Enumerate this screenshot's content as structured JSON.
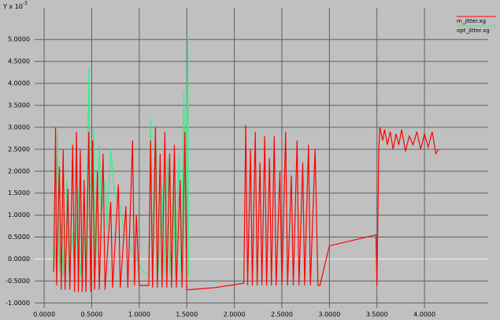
{
  "chart_data": {
    "type": "line",
    "y_label": "Y x 10",
    "y_label_exponent": "-3",
    "xlim": [
      -0.1,
      4.67
    ],
    "ylim": [
      -1.12,
      5.72
    ],
    "xticks": [
      {
        "value": 0,
        "label": "0.0000"
      },
      {
        "value": 0.5,
        "label": "0.5000"
      },
      {
        "value": 1,
        "label": "1.0000"
      },
      {
        "value": 1.5,
        "label": "1.5000"
      },
      {
        "value": 2,
        "label": "2.0000"
      },
      {
        "value": 2.5,
        "label": "2.5000"
      },
      {
        "value": 3,
        "label": "3.0000"
      },
      {
        "value": 3.5,
        "label": "3.5000"
      },
      {
        "value": 4,
        "label": "4.0000"
      }
    ],
    "yticks": [
      {
        "value": -1,
        "label": "-1.0000"
      },
      {
        "value": -0.5,
        "label": "-0.5000"
      },
      {
        "value": 0,
        "label": "0.0000"
      },
      {
        "value": 0.5,
        "label": "0.5000"
      },
      {
        "value": 1,
        "label": "1.0000"
      },
      {
        "value": 1.5,
        "label": "1.5000"
      },
      {
        "value": 2,
        "label": "2.0000"
      },
      {
        "value": 2.5,
        "label": "2.5000"
      },
      {
        "value": 3,
        "label": "3.0000"
      },
      {
        "value": 3.5,
        "label": "3.5000"
      },
      {
        "value": 4,
        "label": "4.0000"
      },
      {
        "value": 4.5,
        "label": "4.5000"
      },
      {
        "value": 5,
        "label": "5.0000"
      }
    ],
    "grid": true,
    "legend": "top-right",
    "series": [
      {
        "name": "m_jitter.xg",
        "color": "#ff0000",
        "x": [
          0.1,
          0.12,
          0.13,
          0.16,
          0.18,
          0.2,
          0.22,
          0.25,
          0.27,
          0.3,
          0.32,
          0.34,
          0.36,
          0.38,
          0.4,
          0.42,
          0.44,
          0.47,
          0.49,
          0.51,
          0.53,
          0.56,
          0.58,
          0.62,
          0.64,
          0.7,
          0.72,
          0.78,
          0.8,
          0.86,
          0.88,
          0.93,
          0.95,
          0.97,
          1.0,
          1.1,
          1.12,
          1.14,
          1.17,
          1.19,
          1.22,
          1.24,
          1.27,
          1.29,
          1.32,
          1.34,
          1.37,
          1.39,
          1.43,
          1.45,
          1.48,
          1.5,
          1.52,
          1.8,
          2.1,
          2.12,
          2.14,
          2.17,
          2.19,
          2.22,
          2.24,
          2.27,
          2.29,
          2.32,
          2.34,
          2.37,
          2.39,
          2.42,
          2.44,
          2.48,
          2.5,
          2.54,
          2.56,
          2.6,
          2.62,
          2.66,
          2.68,
          2.72,
          2.74,
          2.78,
          2.8,
          2.85,
          2.88,
          2.9,
          3.0,
          3.49,
          3.5,
          3.52,
          3.53,
          3.56,
          3.58,
          3.61,
          3.64,
          3.67,
          3.7,
          3.73,
          3.76,
          3.8,
          3.84,
          3.88,
          3.92,
          3.96,
          4.0,
          4.04,
          4.08,
          4.12,
          4.15
        ],
        "values": [
          -0.3,
          3.0,
          -0.6,
          2.1,
          -0.7,
          2.5,
          -0.7,
          1.6,
          -0.7,
          2.6,
          -0.75,
          2.9,
          -0.75,
          2.5,
          -0.75,
          1.8,
          -0.75,
          2.9,
          -0.75,
          2.7,
          -0.7,
          2.0,
          -0.7,
          2.4,
          -0.7,
          1.3,
          -0.65,
          1.7,
          -0.65,
          1.2,
          -0.65,
          2.7,
          -0.6,
          1.0,
          -0.6,
          -0.6,
          2.7,
          -0.65,
          3.0,
          -0.65,
          2.4,
          -0.65,
          2.9,
          -0.65,
          2.4,
          -0.65,
          2.6,
          -0.65,
          1.8,
          -0.65,
          2.9,
          -0.7,
          -0.7,
          -0.65,
          -0.55,
          3.05,
          -0.6,
          2.5,
          -0.6,
          2.9,
          -0.6,
          2.2,
          -0.6,
          2.8,
          -0.6,
          2.3,
          -0.6,
          2.8,
          -0.6,
          2.0,
          -0.6,
          2.9,
          -0.6,
          1.9,
          -0.6,
          2.7,
          -0.6,
          2.2,
          -0.6,
          2.6,
          -0.6,
          2.5,
          -0.6,
          -0.6,
          0.3,
          0.55,
          -0.6,
          2.5,
          3.0,
          2.7,
          2.95,
          2.6,
          2.9,
          2.5,
          2.85,
          2.6,
          2.95,
          2.45,
          2.8,
          2.6,
          2.9,
          2.5,
          2.85,
          2.55,
          2.9,
          2.4,
          2.5
        ]
      },
      {
        "name": "opt_jitter.xg",
        "color": "#33ee88",
        "x": [
          0.1,
          0.12,
          0.14,
          0.16,
          0.18,
          0.2,
          0.24,
          0.26,
          0.3,
          0.32,
          0.36,
          0.38,
          0.42,
          0.44,
          0.47,
          0.49,
          0.52,
          0.54,
          0.58,
          0.6,
          0.64,
          0.66,
          0.7,
          0.74,
          0.8,
          0.85,
          0.9,
          1.0,
          1.05,
          1.1,
          1.12,
          1.14,
          1.18,
          1.2,
          1.24,
          1.26,
          1.3,
          1.32,
          1.36,
          1.38,
          1.42,
          1.44,
          1.47,
          1.49,
          1.51,
          1.52
        ],
        "values": [
          0.5,
          -0.2,
          2.9,
          -0.3,
          0.8,
          -0.4,
          1.8,
          -0.3,
          0.6,
          -0.4,
          1.6,
          -0.4,
          0.5,
          -0.3,
          4.35,
          -0.3,
          3.0,
          -0.2,
          2.6,
          1.0,
          1.8,
          0.7,
          2.5,
          1.5,
          1.2,
          0.5,
          0.3,
          -0.1,
          -0.3,
          -0.35,
          3.2,
          -0.35,
          2.6,
          -0.35,
          1.7,
          -0.35,
          2.3,
          -0.35,
          1.7,
          -0.35,
          2.4,
          -0.3,
          3.8,
          0.0,
          5.05,
          -0.4
        ]
      }
    ]
  }
}
